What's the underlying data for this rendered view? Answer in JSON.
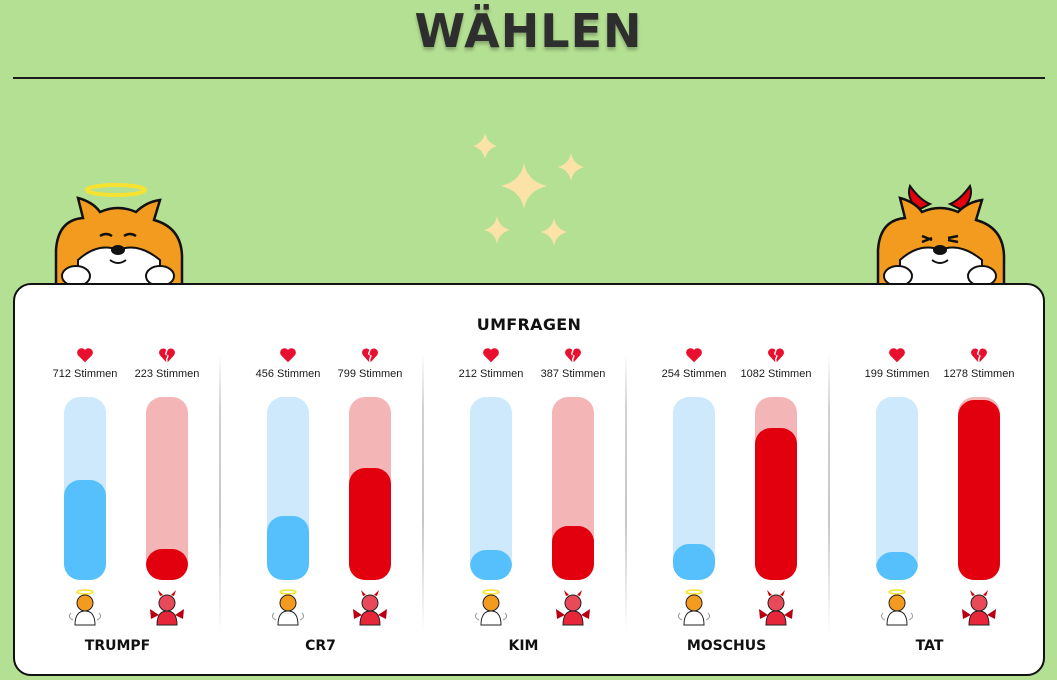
{
  "page": {
    "title": "WÄHLEN",
    "background": "#b4e093"
  },
  "poll": {
    "title": "UMFRAGEN",
    "max_votes": 1300,
    "colors": {
      "good_fill": "#56c0fc",
      "good_track": "#cde9fb",
      "evil_fill": "#e2000f",
      "evil_track": "#f4b5b7",
      "heart": "#e8102e"
    },
    "candidates": [
      {
        "name": "TRUMPF",
        "good_votes": 712,
        "good_label": "712 Stimmen",
        "evil_votes": 223,
        "evil_label": "223 Stimmen"
      },
      {
        "name": "CR7",
        "good_votes": 456,
        "good_label": "456 Stimmen",
        "evil_votes": 799,
        "evil_label": "799 Stimmen"
      },
      {
        "name": "KIM",
        "good_votes": 212,
        "good_label": "212 Stimmen",
        "evil_votes": 387,
        "evil_label": "387 Stimmen"
      },
      {
        "name": "MOSCHUS",
        "good_votes": 254,
        "good_label": "254 Stimmen",
        "evil_votes": 1082,
        "evil_label": "1082 Stimmen"
      },
      {
        "name": "TAT",
        "good_votes": 199,
        "good_label": "199 Stimmen",
        "evil_votes": 1278,
        "evil_label": "1278 Stimmen"
      }
    ],
    "good_icon": "heart-icon",
    "evil_icon": "broken-heart-icon"
  }
}
